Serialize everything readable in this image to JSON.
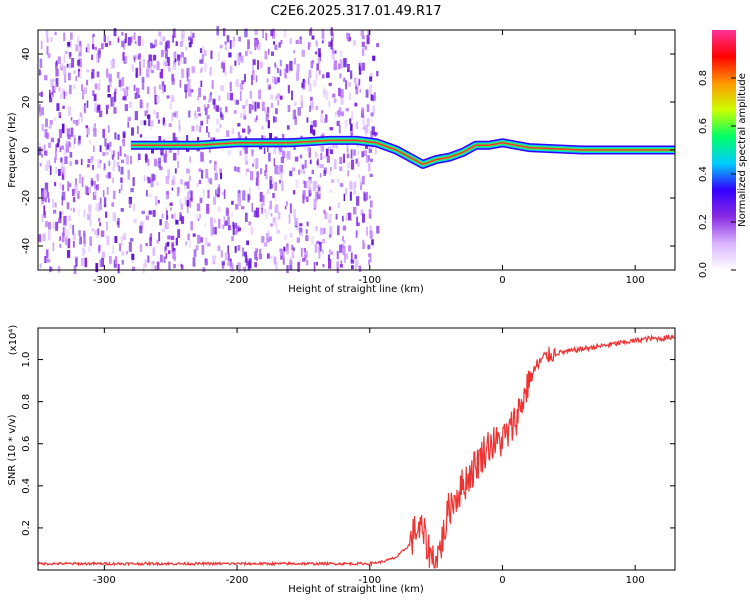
{
  "title": "C2E6.2025.317.01.49.R17",
  "chart_data": [
    {
      "type": "heatmap",
      "xlabel": "Height of straight line (km)",
      "ylabel": "Frequency (Hz)",
      "xlim": [
        -350,
        130
      ],
      "ylim": [
        -50,
        50
      ],
      "xticks": [
        -300,
        -200,
        -100,
        0,
        100
      ],
      "yticks": [
        -40,
        -20,
        0,
        20,
        40
      ],
      "colorbar": {
        "label": "Normalized spectral amplitude",
        "range": [
          0,
          1
        ],
        "ticks": [
          "0.0",
          "0.2",
          "0.4",
          "0.6",
          "0.8"
        ],
        "colors": [
          "#ffffff",
          "#d9b3ff",
          "#8a2be2",
          "#3300ff",
          "#00ccff",
          "#00ff66",
          "#ccff00",
          "#ff9900",
          "#ff0000",
          "#ff3399"
        ]
      },
      "noise_region_x": [
        -350,
        -95
      ],
      "signal_line": {
        "x": [
          -280,
          -260,
          -230,
          -200,
          -160,
          -130,
          -110,
          -95,
          -80,
          -70,
          -60,
          -50,
          -40,
          -30,
          -20,
          -10,
          0,
          20,
          60,
          100,
          130
        ],
        "frequency": [
          2,
          2,
          2,
          3,
          3,
          4,
          4,
          3,
          0,
          -3,
          -6,
          -4,
          -3,
          -1,
          2,
          2,
          3,
          1,
          0,
          0,
          0
        ]
      }
    },
    {
      "type": "line",
      "xlabel": "Height of straight line (km)",
      "ylabel": "SNR (10 * v/v)",
      "y_multiplier": "(x10⁴)",
      "xlim": [
        -350,
        130
      ],
      "ylim": [
        0,
        1.15
      ],
      "xticks": [
        -300,
        -200,
        -100,
        0,
        100
      ],
      "yticks": [
        0.2,
        0.4,
        0.6,
        0.8,
        1.0
      ],
      "ytick_labels": [
        "0.2",
        "0.4",
        "0.6",
        "0.8",
        "1.0"
      ],
      "series_color": "#ee3333",
      "x": [
        -350,
        -300,
        -250,
        -200,
        -150,
        -100,
        -90,
        -80,
        -70,
        -65,
        -60,
        -55,
        -50,
        -45,
        -40,
        -35,
        -30,
        -25,
        -20,
        -15,
        -10,
        -5,
        0,
        5,
        10,
        15,
        20,
        25,
        30,
        35,
        40,
        50,
        60,
        70,
        80,
        90,
        100,
        110,
        120,
        130
      ],
      "values": [
        0.03,
        0.03,
        0.03,
        0.03,
        0.03,
        0.03,
        0.04,
        0.06,
        0.12,
        0.2,
        0.18,
        0.08,
        0.04,
        0.15,
        0.3,
        0.35,
        0.4,
        0.45,
        0.5,
        0.55,
        0.6,
        0.6,
        0.62,
        0.65,
        0.72,
        0.8,
        0.9,
        0.96,
        1.0,
        1.02,
        1.03,
        1.04,
        1.05,
        1.06,
        1.07,
        1.08,
        1.09,
        1.1,
        1.1,
        1.11
      ]
    }
  ]
}
